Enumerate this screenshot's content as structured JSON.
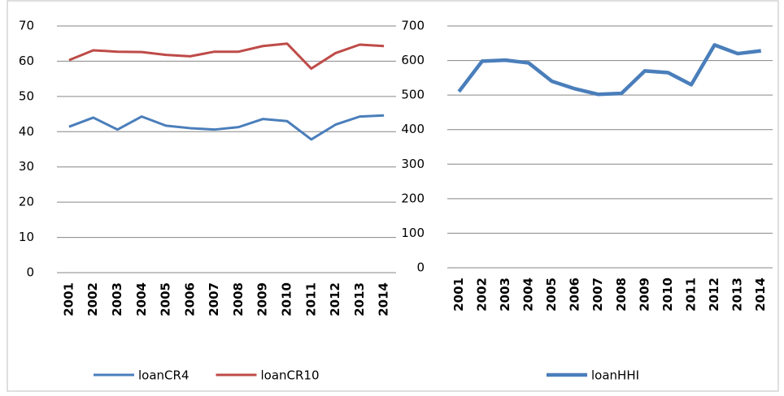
{
  "chart_data": [
    {
      "type": "line",
      "categories": [
        "2001",
        "2002",
        "2003",
        "2004",
        "2005",
        "2006",
        "2007",
        "2008",
        "2009",
        "2010",
        "2011",
        "2012",
        "2013",
        "2014"
      ],
      "series": [
        {
          "name": "loanCR4",
          "color": "#4a7ebb",
          "values": [
            41.4,
            44,
            40.6,
            44.3,
            41.7,
            41,
            40.6,
            41.3,
            43.6,
            43,
            37.8,
            42,
            44.3,
            44.6
          ]
        },
        {
          "name": "loanCR10",
          "color": "#be4b48",
          "values": [
            60.3,
            63.1,
            62.7,
            62.6,
            61.8,
            61.4,
            62.7,
            62.7,
            64.3,
            65,
            57.9,
            62.3,
            64.7,
            64.3
          ]
        }
      ],
      "ylim": [
        0,
        70
      ],
      "yticks": [
        0,
        10,
        20,
        30,
        40,
        50,
        60,
        70
      ],
      "grid": true,
      "legend": "bottom"
    },
    {
      "type": "line",
      "categories": [
        "2001",
        "2002",
        "2003",
        "2004",
        "2005",
        "2006",
        "2007",
        "2008",
        "2009",
        "2010",
        "2011",
        "2012",
        "2013",
        "2014"
      ],
      "series": [
        {
          "name": "loanHHI",
          "color": "#4a7ebb",
          "values": [
            510,
            598,
            601,
            593,
            540,
            518,
            502,
            505,
            570,
            565,
            530,
            645,
            620,
            628
          ]
        }
      ],
      "ylim": [
        0,
        700
      ],
      "yticks": [
        0,
        100,
        200,
        300,
        400,
        500,
        600,
        700
      ],
      "grid": true,
      "legend": "bottom"
    }
  ]
}
